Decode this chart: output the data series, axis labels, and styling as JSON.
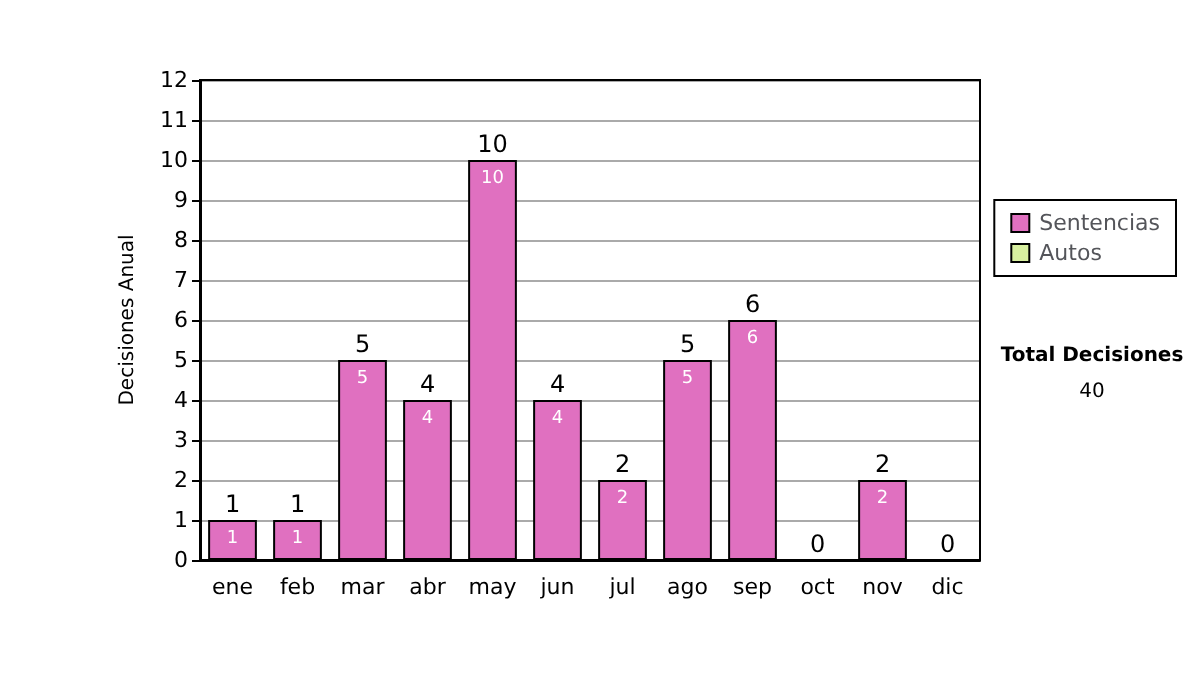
{
  "chart_data": {
    "type": "bar",
    "ylabel": "Decisiones Anual",
    "categories": [
      "ene",
      "feb",
      "mar",
      "abr",
      "may",
      "jun",
      "jul",
      "ago",
      "sep",
      "oct",
      "nov",
      "dic"
    ],
    "series": [
      {
        "name": "Sentencias",
        "color": "#e070c0",
        "values": [
          1,
          1,
          5,
          4,
          10,
          4,
          2,
          5,
          6,
          0,
          2,
          0
        ],
        "value_labels": [
          "1",
          "1",
          "5",
          "4",
          "10",
          "4",
          "2",
          "5",
          "6",
          null,
          "2",
          null
        ]
      },
      {
        "name": "Autos",
        "color": "#d8f0a0",
        "values": [
          0,
          0,
          0,
          0,
          0,
          0,
          0,
          0,
          0,
          0,
          0,
          0
        ]
      }
    ],
    "stacked": true,
    "totals": [
      "1",
      "1",
      "5",
      "4",
      "10",
      "4",
      "2",
      "5",
      "6",
      "0",
      "2",
      "0"
    ],
    "ylim": [
      0,
      12
    ],
    "yticks": [
      0,
      1,
      2,
      3,
      4,
      5,
      6,
      7,
      8,
      9,
      10,
      11,
      12
    ],
    "grid": "y",
    "legend": "right",
    "annotations": [
      "Total Decisiones",
      "40"
    ]
  }
}
